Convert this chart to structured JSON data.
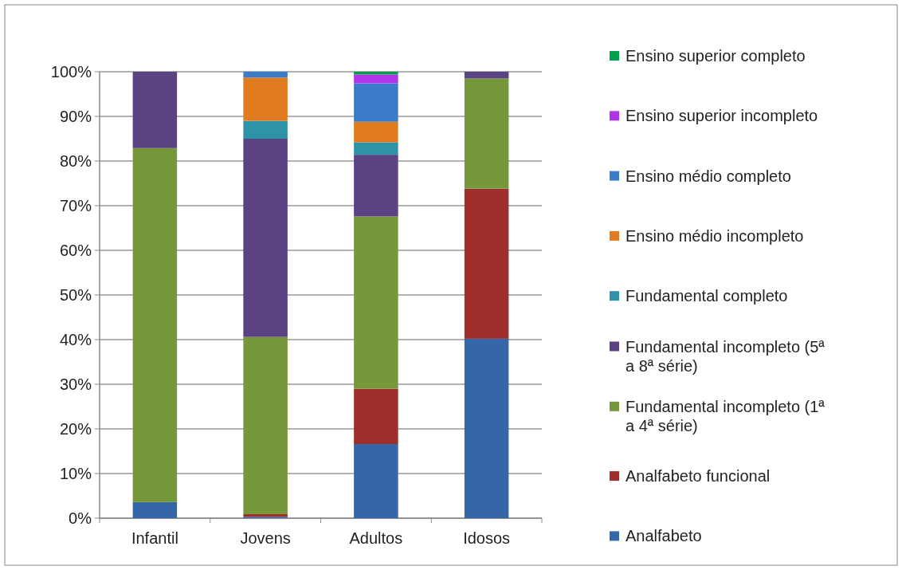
{
  "chart_data": {
    "type": "bar",
    "stacked": true,
    "categories": [
      "Infantil",
      "Jovens",
      "Adultos",
      "Idosos"
    ],
    "series": [
      {
        "name": "Analfabeto",
        "color": "#3466a8",
        "values": [
          3.6,
          0.3,
          16.6,
          40.2
        ]
      },
      {
        "name": "Analfabeto funcional",
        "color": "#9e2f2c",
        "values": [
          0,
          0.6,
          12.4,
          33.6
        ]
      },
      {
        "name": "Fundamental incompleto (1ª a 4ª série)",
        "color": "#76973a",
        "values": [
          79.3,
          39.7,
          38.6,
          24.7
        ]
      },
      {
        "name": "Fundamental incompleto (5ª a 8ª série)",
        "color": "#5b4282",
        "values": [
          17.1,
          44.4,
          13.8,
          1.5
        ]
      },
      {
        "name": "Fundamental completo",
        "color": "#2f93a8",
        "values": [
          0,
          4.0,
          2.8,
          0
        ]
      },
      {
        "name": "Ensino médio incompleto",
        "color": "#e07b20",
        "values": [
          0,
          9.7,
          4.6,
          0
        ]
      },
      {
        "name": "Ensino médio completo",
        "color": "#3b7cc9",
        "values": [
          0,
          1.3,
          8.6,
          0
        ]
      },
      {
        "name": "Ensino superior incompleto",
        "color": "#b035e8",
        "values": [
          0,
          0,
          2.0,
          0
        ]
      },
      {
        "name": "Ensino superior completo",
        "color": "#00a04a",
        "values": [
          0,
          0,
          0.6,
          0
        ]
      }
    ],
    "ylim": [
      0,
      100
    ],
    "yticks": [
      {
        "value": 0,
        "label": "0%"
      },
      {
        "value": 10,
        "label": "10%"
      },
      {
        "value": 20,
        "label": "20%"
      },
      {
        "value": 30,
        "label": "30%"
      },
      {
        "value": 40,
        "label": "40%"
      },
      {
        "value": 50,
        "label": "50%"
      },
      {
        "value": 60,
        "label": "60%"
      },
      {
        "value": 70,
        "label": "70%"
      },
      {
        "value": 80,
        "label": "80%"
      },
      {
        "value": 90,
        "label": "90%"
      },
      {
        "value": 100,
        "label": "100%"
      }
    ],
    "grid": "y",
    "legend": "right"
  }
}
